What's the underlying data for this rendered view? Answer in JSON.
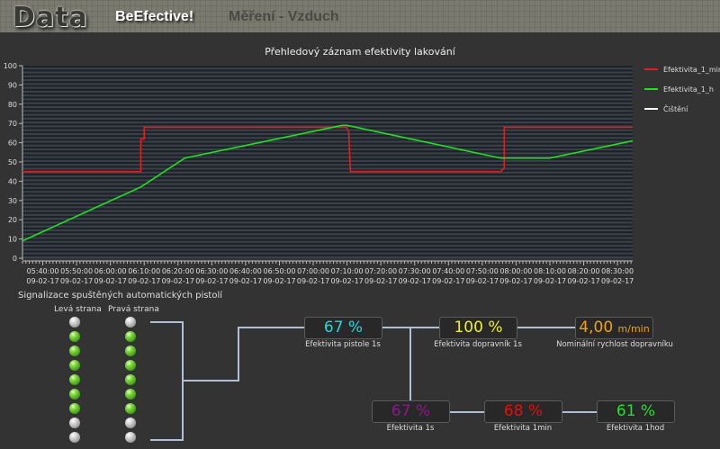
{
  "header": {
    "logo": "Data",
    "brand": "BeEfective!",
    "section": "Měření - Vzduch"
  },
  "chart_data": {
    "type": "line",
    "title": "Přehledový záznam efektivity lakování",
    "ylim": [
      0,
      100
    ],
    "yticks": [
      0,
      10,
      20,
      30,
      40,
      50,
      60,
      70,
      80,
      90,
      100
    ],
    "xlim": [
      "05:34:00",
      "08:34:30"
    ],
    "xticks": [
      "05:40:00",
      "05:50:00",
      "06:00:00",
      "06:10:00",
      "06:20:00",
      "06:30:00",
      "06:40:00",
      "06:50:00",
      "07:00:00",
      "07:10:00",
      "07:20:00",
      "07:30:00",
      "07:40:00",
      "07:50:00",
      "08:00:00",
      "08:10:00",
      "08:20:00",
      "08:30:00"
    ],
    "xtick_date": "09-02-17",
    "grid": true,
    "legend_position": "right",
    "series": [
      {
        "name": "Efektivita_1_min",
        "color": "#e02020",
        "points": [
          [
            "05:34:00",
            45
          ],
          [
            "06:09:00",
            45
          ],
          [
            "06:09:00",
            62
          ],
          [
            "06:10:00",
            62
          ],
          [
            "06:10:00",
            68
          ],
          [
            "07:10:00",
            68
          ],
          [
            "07:10:00",
            67
          ],
          [
            "07:10:30",
            66
          ],
          [
            "07:11:00",
            45
          ],
          [
            "07:55:30",
            45
          ],
          [
            "07:56:00",
            46
          ],
          [
            "07:56:30",
            47
          ],
          [
            "07:56:30",
            68
          ],
          [
            "08:34:30",
            68
          ]
        ]
      },
      {
        "name": "Efektivita_1_h",
        "color": "#20e020",
        "points": [
          [
            "05:34:00",
            9
          ],
          [
            "06:09:00",
            37
          ],
          [
            "06:22:00",
            52
          ],
          [
            "07:08:30",
            69
          ],
          [
            "07:10:00",
            69
          ],
          [
            "07:55:30",
            52
          ],
          [
            "08:10:00",
            52
          ],
          [
            "08:34:30",
            61
          ]
        ]
      },
      {
        "name": "Čištění",
        "color": "#ffffff",
        "points": []
      }
    ]
  },
  "signal": {
    "title": "Signalizace spuštěných automatických pistolí",
    "left_label": "Levá strana",
    "right_label": "Pravá strana",
    "left": [
      false,
      true,
      true,
      true,
      true,
      true,
      true,
      false,
      false
    ],
    "right": [
      false,
      true,
      true,
      true,
      true,
      true,
      true,
      false,
      false
    ]
  },
  "metrics": {
    "gun": {
      "value": "67 %",
      "label": "Efektivita pistole 1s",
      "color": "#22d8e0"
    },
    "conveyor": {
      "value": "100 %",
      "label": "Efektivita dopravník 1s",
      "color": "#f0f020"
    },
    "speed": {
      "value": "4,00",
      "unit": "m/min",
      "label": "Nominální rychlost dopravníku",
      "color": "#f0a010"
    },
    "eff1s": {
      "value": "67 %",
      "label": "Efektivita 1s",
      "color": "#8a1a8a"
    },
    "eff1min": {
      "value": "68 %",
      "label": "Efektivita 1min",
      "color": "#e01010"
    },
    "eff1h": {
      "value": "61 %",
      "label": "Efektivita 1hod",
      "color": "#22e030"
    }
  }
}
